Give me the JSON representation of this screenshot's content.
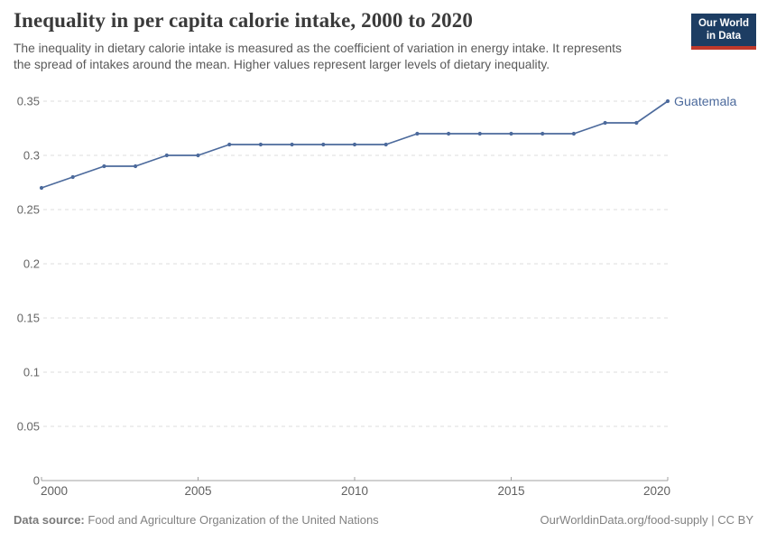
{
  "header": {
    "title": "Inequality in per capita calorie intake, 2000 to 2020",
    "subtitle_lines": [
      "The inequality in dietary calorie intake is measured as the coefficient of variation in energy intake. It represents",
      "the spread of intakes around the mean. Higher values represent larger levels of dietary inequality."
    ]
  },
  "logo": {
    "line1": "Our World",
    "line2": "in Data"
  },
  "chart_data": {
    "type": "line",
    "title": "Inequality in per capita calorie intake, 2000 to 2020",
    "x": [
      2000,
      2001,
      2002,
      2003,
      2004,
      2005,
      2006,
      2007,
      2008,
      2009,
      2010,
      2011,
      2012,
      2013,
      2014,
      2015,
      2016,
      2017,
      2018,
      2019,
      2020
    ],
    "series": [
      {
        "name": "Guatemala",
        "color": "#4C6A9C",
        "values": [
          0.27,
          0.28,
          0.29,
          0.29,
          0.3,
          0.3,
          0.31,
          0.31,
          0.31,
          0.31,
          0.31,
          0.31,
          0.32,
          0.32,
          0.32,
          0.32,
          0.32,
          0.32,
          0.33,
          0.33,
          0.35
        ]
      }
    ],
    "xlabel": "",
    "ylabel": "",
    "ylim": [
      0,
      0.35
    ],
    "xlim": [
      2000,
      2020
    ],
    "yticks": [
      "0",
      "0.05",
      "0.1",
      "0.15",
      "0.2",
      "0.25",
      "0.3",
      "0.35"
    ],
    "xticks": [
      2000,
      2005,
      2010,
      2015,
      2020
    ],
    "grid": "horizontal-dashed",
    "legend_position": "end-of-line-label",
    "marker": "dot"
  },
  "footer": {
    "source_label": "Data source:",
    "source_text": "Food and Agriculture Organization of the United Nations",
    "credit": "OurWorldinData.org/food-supply | CC BY"
  },
  "colors": {
    "series_blue": "#4C6A9C",
    "logo_navy": "#1d3d63",
    "logo_red": "#c0392b",
    "gridline": "#dcdcdc",
    "axis": "#a1a1a1",
    "title_text": "#3a3a3a",
    "subtitle_text": "#595959",
    "footer_text": "#828282"
  }
}
